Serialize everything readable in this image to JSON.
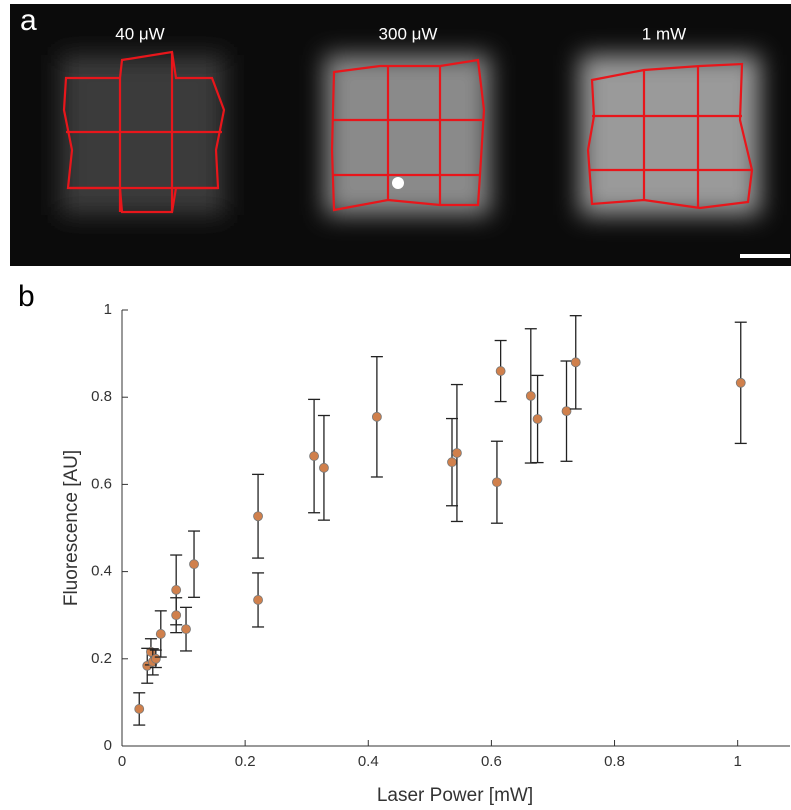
{
  "figure": {
    "panel_labels": [
      "a",
      "b"
    ],
    "image_labels": [
      "40 μW",
      "300 μW",
      "1 mW"
    ]
  },
  "chart_data": {
    "type": "scatter",
    "xlabel": "Laser Power [mW]",
    "ylabel": "Fluorescence [AU]",
    "xlim": [
      0,
      1.085
    ],
    "ylim": [
      0,
      1
    ],
    "xticks": [
      0,
      0.2,
      0.4,
      0.6,
      0.8,
      1
    ],
    "yticks": [
      0,
      0.2,
      0.4,
      0.6,
      0.8,
      1
    ],
    "series": [
      {
        "color": "#d0804c",
        "error_color": "#222222",
        "x": [
          0.028,
          0.041,
          0.047,
          0.05,
          0.055,
          0.063,
          0.088,
          0.088,
          0.104,
          0.117,
          0.221,
          0.221,
          0.312,
          0.328,
          0.414,
          0.536,
          0.544,
          0.609,
          0.615,
          0.664,
          0.675,
          0.722,
          0.737,
          1.005
        ],
        "values": [
          0.085,
          0.184,
          0.216,
          0.193,
          0.2,
          0.257,
          0.358,
          0.3,
          0.268,
          0.417,
          0.527,
          0.335,
          0.665,
          0.638,
          0.755,
          0.651,
          0.672,
          0.605,
          0.86,
          0.803,
          0.75,
          0.768,
          0.88,
          0.833
        ],
        "errors": [
          0.037,
          0.04,
          0.03,
          0.03,
          0.02,
          0.053,
          0.08,
          0.04,
          0.05,
          0.076,
          0.096,
          0.062,
          0.13,
          0.12,
          0.138,
          0.1,
          0.157,
          0.094,
          0.07,
          0.154,
          0.1,
          0.115,
          0.107,
          0.139
        ]
      }
    ]
  }
}
